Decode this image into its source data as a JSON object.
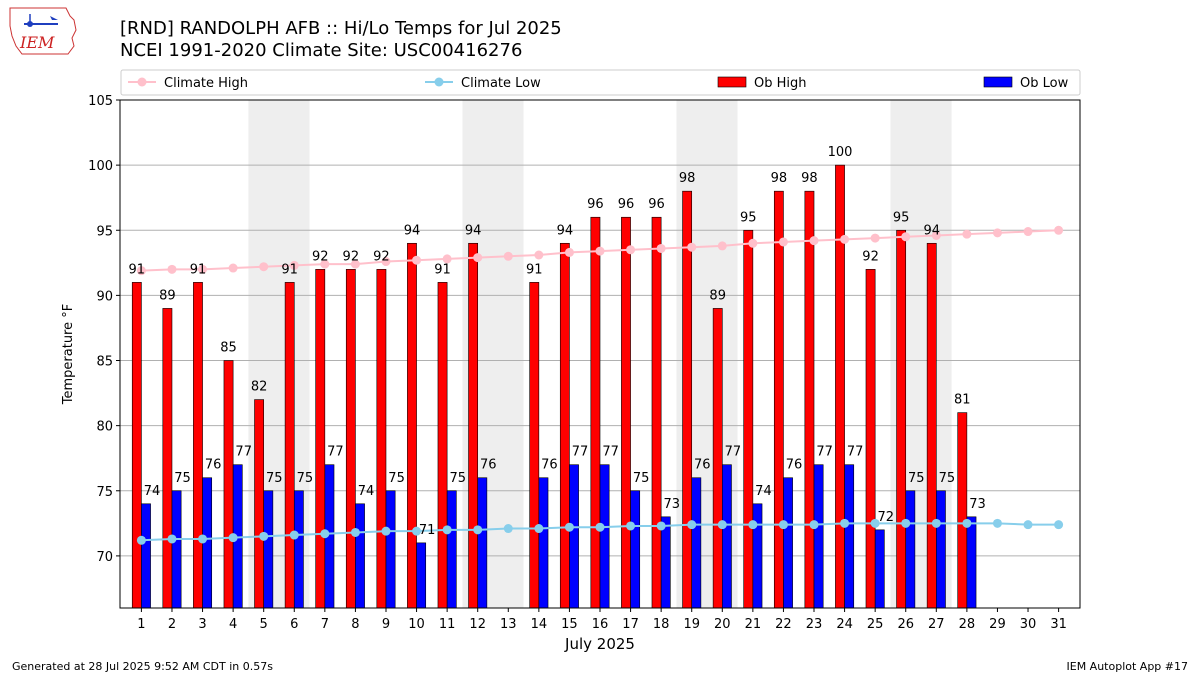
{
  "header": {
    "title_line1": "[RND] RANDOLPH AFB :: Hi/Lo Temps for Jul 2025",
    "title_line2": "NCEI 1991-2020 Climate Site: USC00416276",
    "logo_text": "IEM"
  },
  "footer": {
    "generated": "Generated at 28 Jul 2025 9:52 AM CDT in 0.57s",
    "app": "IEM Autoplot App #17"
  },
  "colors": {
    "ob_high": "#ff0000",
    "ob_low": "#0000ff",
    "climate_high": "#ffc0cb",
    "climate_low": "#87ceeb",
    "weekend_band": "#eeeeee",
    "grid": "#b0b0b0"
  },
  "chart_data": {
    "type": "bar",
    "xlabel": "July 2025",
    "ylabel": "Temperature °F",
    "ylim": [
      66,
      105
    ],
    "yticks": [
      70,
      75,
      80,
      85,
      90,
      95,
      100,
      105
    ],
    "grid": "horizontal",
    "legend_position": "top",
    "categories": [
      "1",
      "2",
      "3",
      "4",
      "5",
      "6",
      "7",
      "8",
      "9",
      "10",
      "11",
      "12",
      "13",
      "14",
      "15",
      "16",
      "17",
      "18",
      "19",
      "20",
      "21",
      "22",
      "23",
      "24",
      "25",
      "26",
      "27",
      "28",
      "29",
      "30",
      "31"
    ],
    "weekend_bands": [
      [
        5,
        6
      ],
      [
        12,
        13
      ],
      [
        19,
        20
      ],
      [
        26,
        27
      ]
    ],
    "series": [
      {
        "name": "Climate High",
        "kind": "line",
        "values": [
          91.9,
          92.0,
          92.0,
          92.1,
          92.2,
          92.3,
          92.4,
          92.4,
          92.6,
          92.7,
          92.8,
          92.9,
          93.0,
          93.1,
          93.3,
          93.4,
          93.5,
          93.6,
          93.7,
          93.8,
          94.0,
          94.1,
          94.2,
          94.3,
          94.4,
          94.5,
          94.6,
          94.7,
          94.8,
          94.9,
          95.0
        ]
      },
      {
        "name": "Climate Low",
        "kind": "line",
        "values": [
          71.2,
          71.3,
          71.3,
          71.4,
          71.5,
          71.6,
          71.7,
          71.8,
          71.9,
          71.9,
          72.0,
          72.0,
          72.1,
          72.1,
          72.2,
          72.2,
          72.3,
          72.3,
          72.4,
          72.4,
          72.4,
          72.4,
          72.4,
          72.5,
          72.5,
          72.5,
          72.5,
          72.5,
          72.5,
          72.4,
          72.4
        ]
      },
      {
        "name": "Ob High",
        "kind": "bar",
        "values": [
          91,
          89,
          91,
          85,
          82,
          91,
          92,
          92,
          92,
          94,
          91,
          94,
          null,
          91,
          94,
          96,
          96,
          96,
          98,
          89,
          95,
          98,
          98,
          100,
          92,
          95,
          94,
          81,
          null,
          null,
          null
        ],
        "labels": [
          "91",
          "89",
          "91",
          "85",
          "82",
          "91",
          "92",
          "92",
          "92",
          "94",
          "91",
          "94",
          null,
          "91",
          "94",
          "96",
          "96",
          "96",
          "98",
          "89",
          "95",
          "98",
          "98",
          "100",
          "92",
          "95",
          "94",
          "81",
          null,
          null,
          null
        ]
      },
      {
        "name": "Ob Low",
        "kind": "bar",
        "values": [
          74,
          75,
          76,
          77,
          75,
          75,
          77,
          74,
          75,
          71,
          75,
          76,
          null,
          76,
          77,
          77,
          75,
          73,
          76,
          77,
          74,
          76,
          77,
          77,
          72,
          75,
          75,
          73,
          null,
          null,
          null
        ],
        "labels": [
          "74",
          "75",
          "76",
          "77",
          "75",
          "75",
          "77",
          "74",
          "75",
          "71",
          "75",
          "76",
          null,
          "76",
          "77",
          "77",
          "75",
          "73",
          "76",
          "77",
          "74",
          "76",
          "77",
          "77",
          "72",
          "75",
          "75",
          "73",
          null,
          null,
          null
        ]
      }
    ]
  }
}
